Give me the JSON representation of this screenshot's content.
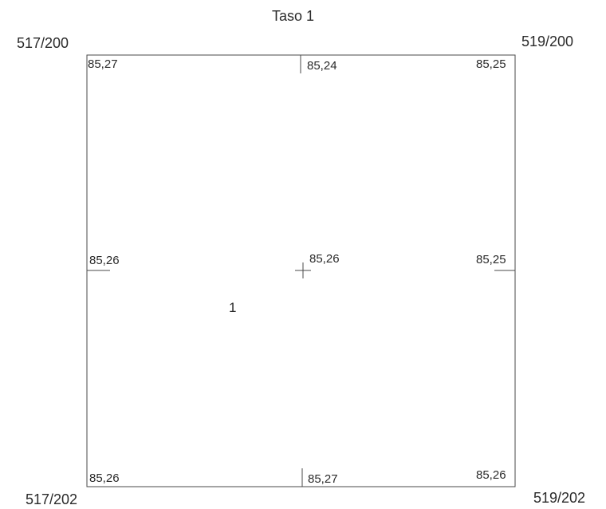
{
  "title": "Taso 1",
  "corners": {
    "top_left": "517/200",
    "top_right": "519/200",
    "bottom_left": "517/202",
    "bottom_right": "519/202"
  },
  "elevations": {
    "top_left": "85,27",
    "top_middle": "85,24",
    "top_right": "85,25",
    "middle_left": "85,26",
    "center": "85,26",
    "middle_right": "85,25",
    "bottom_left": "85,26",
    "bottom_middle": "85,27",
    "bottom_right": "85,26"
  },
  "area_label": "1",
  "colors": {
    "line": "#4a4a4a",
    "text": "#2a2a2a"
  }
}
